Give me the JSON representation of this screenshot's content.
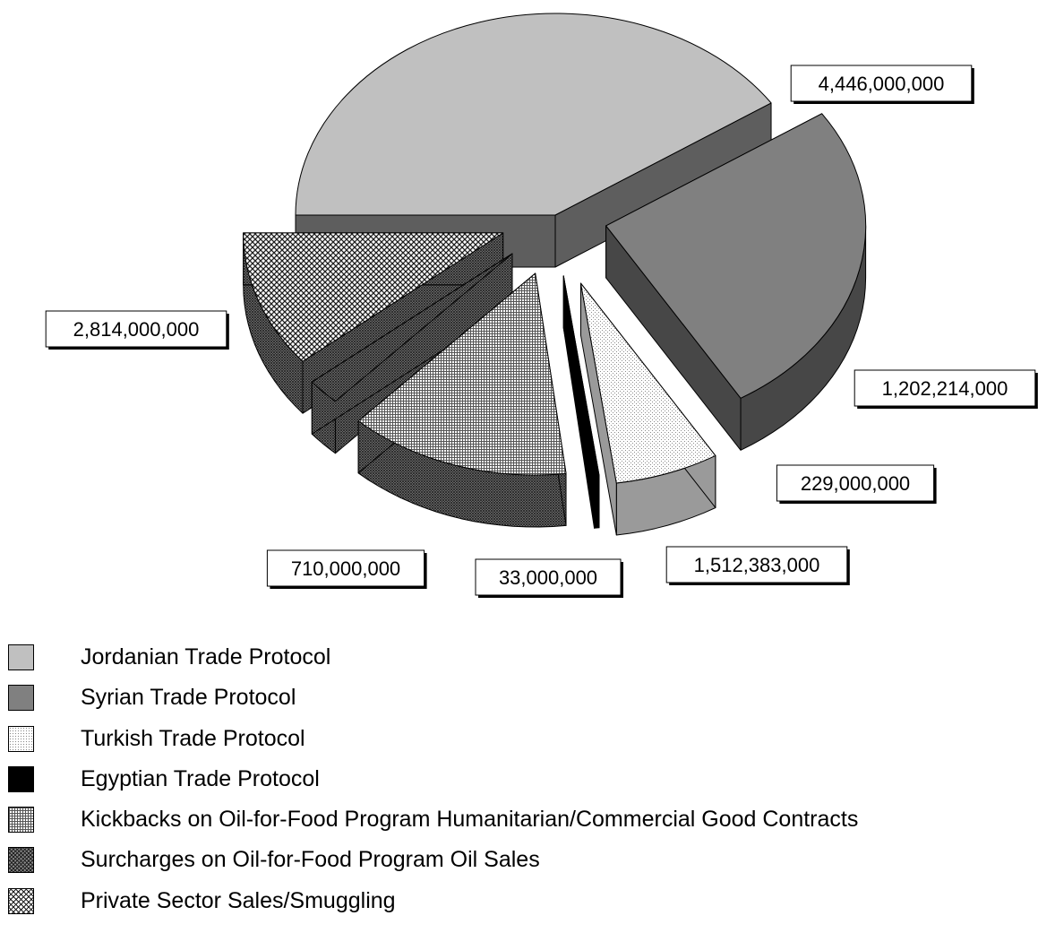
{
  "chart_data": {
    "type": "pie",
    "style": "3d-exploded",
    "categories": [
      "Jordanian Trade Protocol",
      "Syrian Trade Protocol",
      "Turkish Trade Protocol",
      "Egyptian Trade Protocol",
      "Kickbacks on Oil-for-Food Program Humanitarian/Commercial Good Contracts",
      "Surcharges on Oil-for-Food Program Oil Sales",
      "Private Sector Sales/Smuggling"
    ],
    "values": [
      4446000000,
      2814000000,
      710000000,
      33000000,
      1512383000,
      229000000,
      1202214000
    ],
    "data_labels": [
      "4,446,000,000",
      "2,814,000,000",
      "710,000,000",
      "33,000,000",
      "1,512,383,000",
      "229,000,000",
      "1,202,214,000"
    ],
    "fills": [
      "solid-light-gray",
      "solid-gray",
      "fine-dots",
      "solid-black",
      "fine-grid",
      "dense-crosshatch",
      "diamond-crosshatch"
    ],
    "colors": {
      "jordanian": "#c0c0c0",
      "syrian": "#808080",
      "turkish": "#f0f0f0",
      "egyptian": "#000000",
      "kickbacks": "#a0a0a0",
      "surcharges": "#7a7a7a",
      "private": "#9a9a9a"
    },
    "legend_position": "bottom-left"
  }
}
